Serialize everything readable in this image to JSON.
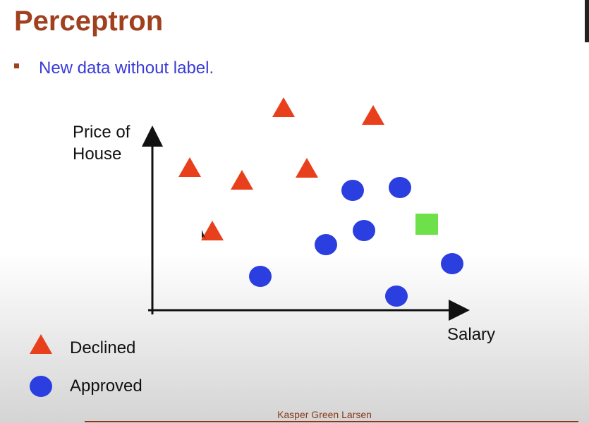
{
  "header": {
    "title": "Perceptron"
  },
  "bullets": [
    "New data without label."
  ],
  "diagram": {
    "y_axis_label": [
      "Price of",
      "House"
    ],
    "x_axis_label": "Salary"
  },
  "legend": [
    "Declined",
    "Approved"
  ],
  "footer": "Kasper Green Larsen"
}
